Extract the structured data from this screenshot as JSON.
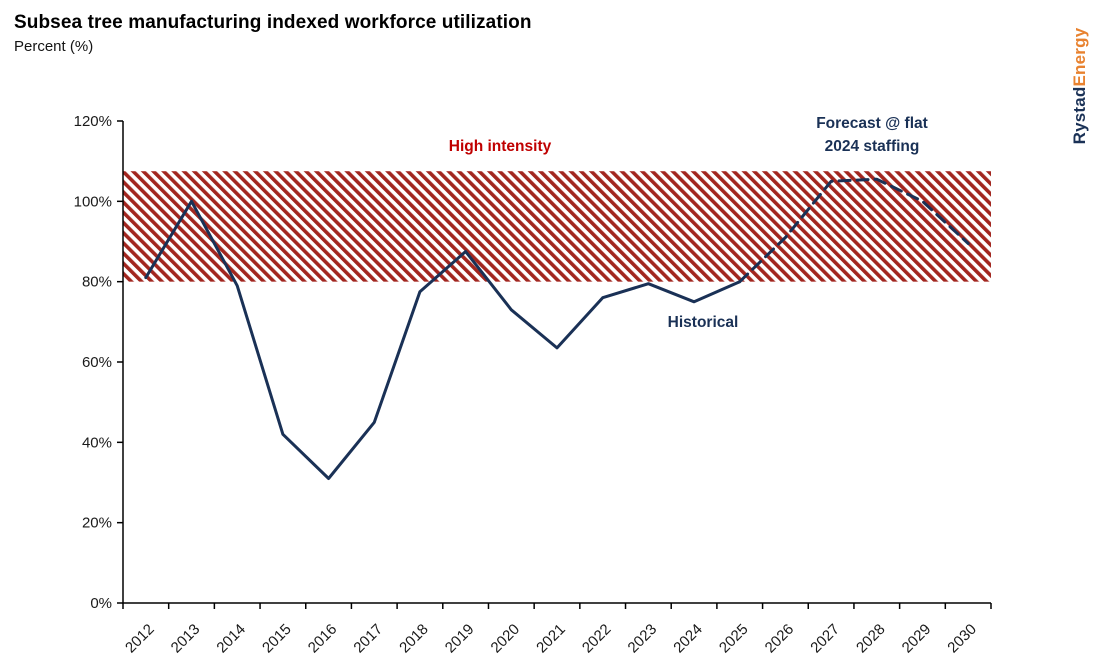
{
  "header": {
    "title": "Subsea tree manufacturing indexed workforce utilization",
    "subtitle": "Percent (%)"
  },
  "logo": {
    "brand": "Rystad",
    "suffix": "Energy",
    "brand_color": "#1A3156",
    "suffix_color": "#E8822F"
  },
  "chart_data": {
    "type": "line",
    "title": "Subsea tree manufacturing indexed workforce utilization",
    "ylabel": "Percent (%)",
    "grid": false,
    "legend": "none",
    "x_labels": [
      "2012",
      "2013",
      "2014",
      "2015",
      "2016",
      "2017",
      "2018",
      "2019",
      "2020",
      "2021",
      "2022",
      "2023",
      "2024",
      "2025",
      "2026",
      "2027",
      "2028",
      "2029",
      "2030"
    ],
    "y_axis": {
      "min": 0,
      "max": 120,
      "step": 20,
      "tick_labels": [
        "0%",
        "20%",
        "40%",
        "60%",
        "80%",
        "100%",
        "120%"
      ]
    },
    "axis_color": "#000000",
    "series": [
      {
        "name": "Historical",
        "style": "solid",
        "color": "#1A3156",
        "x": [
          2012,
          2013,
          2014,
          2015,
          2016,
          2017,
          2018,
          2019,
          2020,
          2021,
          2022,
          2023,
          2024,
          2025
        ],
        "values": [
          81,
          100,
          79,
          42,
          31,
          45,
          77.5,
          87.5,
          73,
          63.5,
          76,
          79.5,
          75,
          80
        ]
      },
      {
        "name": "Forecast @ flat 2024 staffing",
        "style": "dashed",
        "color": "#1A3156",
        "x": [
          2025,
          2026,
          2027,
          2028,
          2029,
          2030
        ],
        "values": [
          80,
          91,
          105,
          105.5,
          100,
          89.5
        ]
      }
    ],
    "band": {
      "label": "High intensity",
      "from_pct": 80,
      "to_pct": 107.5,
      "stripe_color": "#A2261F"
    },
    "annotations": {
      "high_intensity": {
        "text": "High intensity",
        "color": "#C00000"
      },
      "historical": {
        "text": "Historical",
        "color": "#1A3156"
      },
      "forecast": {
        "text_line1": "Forecast @ flat",
        "text_line2": "2024 staffing",
        "color": "#1A3156"
      }
    }
  }
}
